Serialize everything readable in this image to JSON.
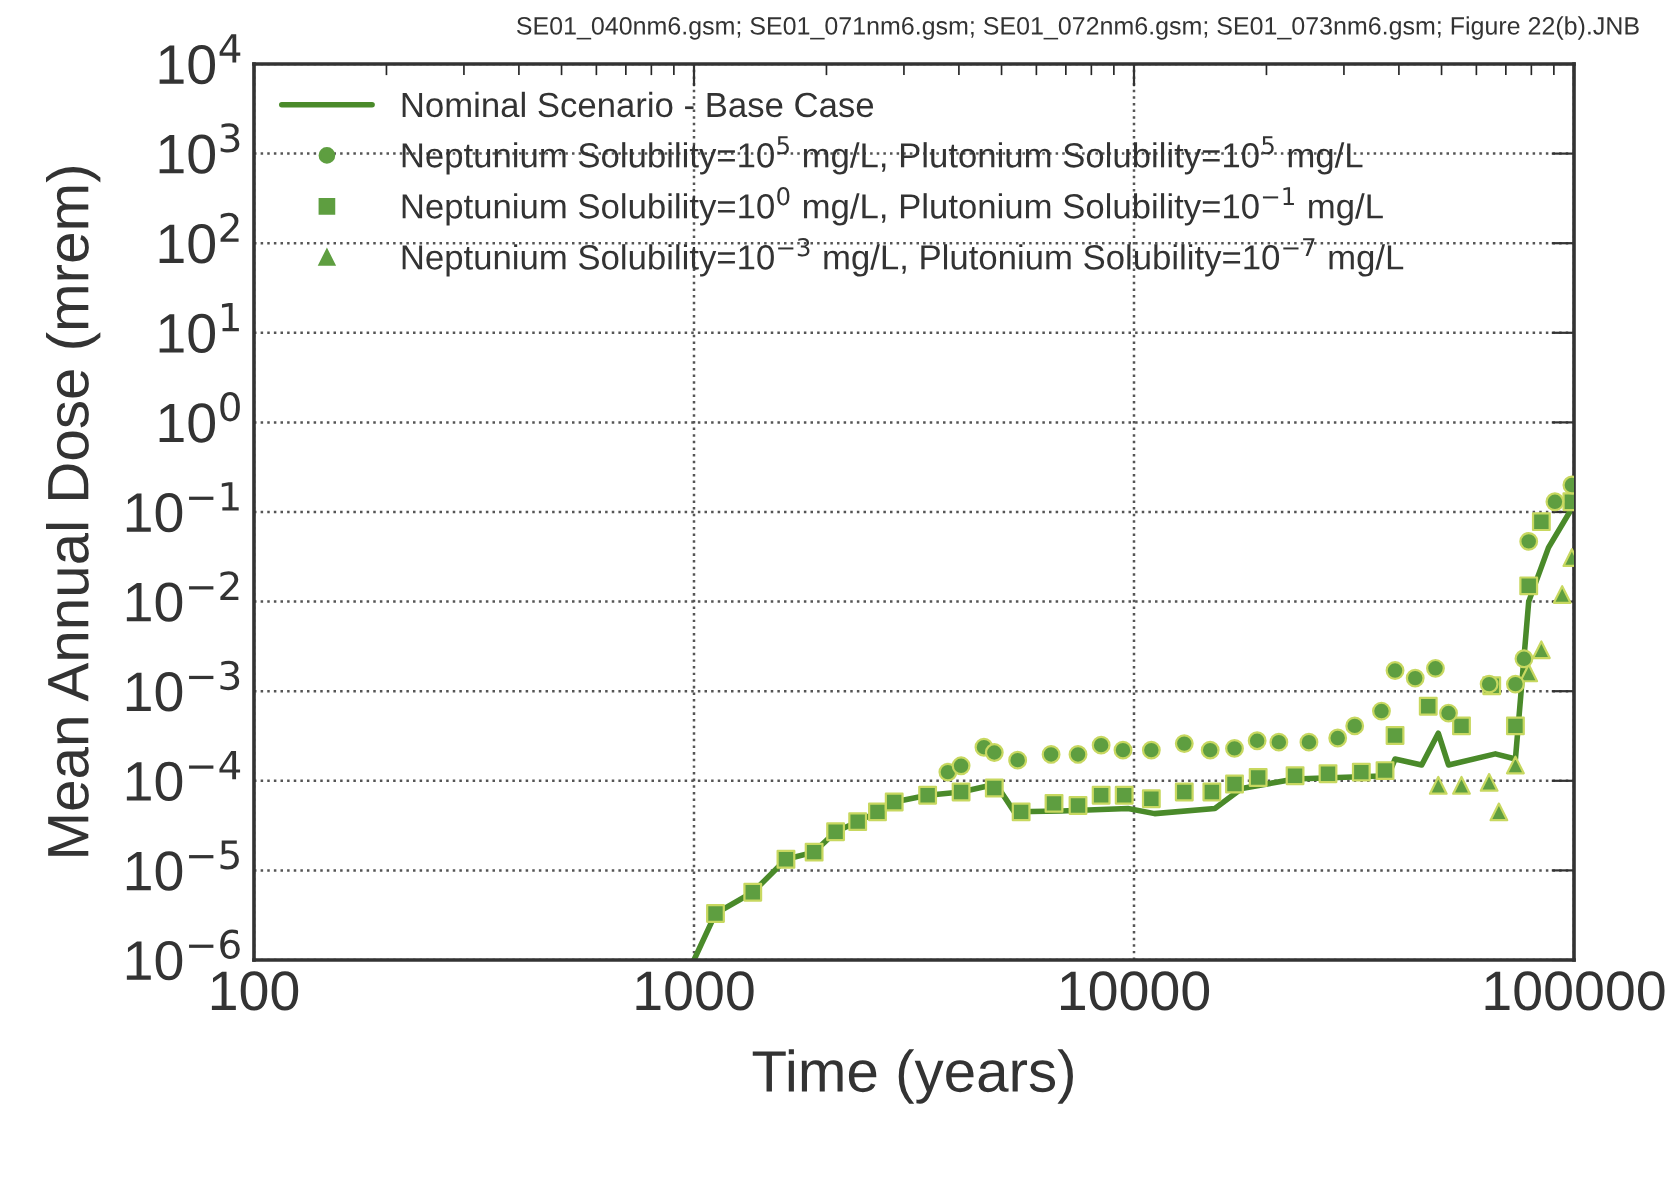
{
  "chart_data": {
    "type": "line",
    "xlabel": "Time (years)",
    "ylabel": "Mean Annual Dose (mrem)",
    "annotations": [
      "SE01_040nm6.gsm; SE01_071nm6.gsm; SE01_072nm6.gsm; SE01_073nm6.gsm; Figure 22(b).JNB"
    ],
    "log": "xy",
    "xlim": [
      100,
      100000
    ],
    "ylim": [
      1e-06,
      10000
    ],
    "xticks": [
      100,
      1000,
      10000,
      100000
    ],
    "yticks": [
      {
        "value": 1e-06,
        "label": "10$^{−6}$"
      },
      {
        "value": 1e-05,
        "label": "10$^{−5}$"
      },
      {
        "value": 0.0001,
        "label": "10$^{−4}$"
      },
      {
        "value": 0.001,
        "label": "10$^{−3}$"
      },
      {
        "value": 0.01,
        "label": "10$^{−2}$"
      },
      {
        "value": 0.1,
        "label": "10$^{−1}$"
      },
      {
        "value": 1,
        "label": "10$^{0}$"
      },
      {
        "value": 10,
        "label": "10$^{1}$"
      },
      {
        "value": 100,
        "label": "10$^{2}$"
      },
      {
        "value": 1000,
        "label": "10$^{3}$"
      },
      {
        "value": 10000,
        "label": "10$^{4}$"
      }
    ],
    "grid": true,
    "legend": "top left",
    "series": [
      {
        "name": "Nominal Scenario - Base Case",
        "marker": "none",
        "line_style": "solid",
        "color": "#4a8a2a",
        "x": [
          1000,
          1119,
          1360,
          1618,
          1875,
          2098,
          2355,
          2612,
          2851,
          3396,
          4046,
          4731,
          4990,
          5346,
          6833,
          9690,
          11140,
          15270,
          17570,
          23230,
          37840,
          39200,
          45070,
          49150,
          51860,
          66260,
          73600,
          78900,
          87500,
          98900
        ],
        "values": [
          1e-06,
          3.3e-06,
          5.7e-06,
          1.33e-05,
          1.6e-05,
          2.7e-05,
          3.5e-05,
          4.5e-05,
          5.8e-05,
          6.9e-05,
          7.5e-05,
          8.9e-05,
          7.5e-05,
          4.5e-05,
          4.6e-05,
          4.9e-05,
          4.3e-05,
          4.9e-05,
          8.2e-05,
          0.000105,
          0.000114,
          0.000175,
          0.00015,
          0.00034,
          0.00015,
          0.0002,
          0.000175,
          0.01,
          0.04,
          0.11
        ]
      },
      {
        "name": "Neptunium Solubility=10$^{5}$ mg/L, Plutonium Solubility=10$^{5}$ mg/L",
        "type": "scatter",
        "marker": "circle",
        "color": "#5e9e40",
        "x": [
          3776,
          4046,
          4560,
          4814,
          5440,
          6480,
          7460,
          8420,
          9440,
          10950,
          13010,
          14900,
          16920,
          19050,
          21340,
          24980,
          29040,
          31740,
          36510,
          39200,
          43560,
          48430,
          51860,
          64140,
          73600,
          76960,
          78900,
          90500,
          98900
        ],
        "values": [
          0.000125,
          0.000147,
          0.000237,
          0.000207,
          0.00017,
          0.000197,
          0.000197,
          0.00025,
          0.00022,
          0.00022,
          0.00026,
          0.00022,
          0.00023,
          0.00028,
          0.00027,
          0.00027,
          0.0003,
          0.00041,
          0.0006,
          0.0017,
          0.0014,
          0.0018,
          0.00057,
          0.0012,
          0.0012,
          0.0023,
          0.047,
          0.13,
          0.2
        ]
      },
      {
        "name": "Neptunium Solubility=10$^{0}$ mg/L, Plutonium Solubility=10$^{−1}$ mg/L",
        "type": "scatter",
        "marker": "square",
        "color": "#5e9e40",
        "x": [
          1119,
          1360,
          1618,
          1875,
          2098,
          2355,
          2612,
          2851,
          3396,
          4046,
          4814,
          5540,
          6580,
          7460,
          8420,
          9500,
          10950,
          13010,
          15030,
          16920,
          19150,
          23230,
          27600,
          32860,
          37200,
          39200,
          46640,
          55500,
          65020,
          73600,
          78900,
          84300,
          98900
        ],
        "values": [
          3.3e-06,
          5.7e-06,
          1.33e-05,
          1.6e-05,
          2.7e-05,
          3.5e-05,
          4.5e-05,
          5.8e-05,
          6.9e-05,
          7.5e-05,
          8.3e-05,
          4.5e-05,
          5.6e-05,
          5.3e-05,
          6.9e-05,
          6.9e-05,
          6.3e-05,
          7.5e-05,
          7.5e-05,
          9.2e-05,
          0.000109,
          0.000114,
          0.00012,
          0.000125,
          0.00013,
          0.00032,
          0.00068,
          0.00041,
          0.00115,
          0.00041,
          0.015,
          0.078,
          0.13
        ]
      },
      {
        "name": "Neptunium Solubility=10$^{−3}$ mg/L, Plutonium Solubility=10$^{−7}$ mg/L",
        "type": "scatter",
        "marker": "triangle",
        "color": "#5e9e40",
        "x": [
          49150,
          55500,
          64140,
          67500,
          73600,
          78900,
          84300,
          94000,
          98900
        ],
        "values": [
          8.9e-05,
          8.9e-05,
          9.6e-05,
          4.5e-05,
          0.00015,
          0.0016,
          0.0029,
          0.012,
          0.031
        ]
      }
    ]
  }
}
